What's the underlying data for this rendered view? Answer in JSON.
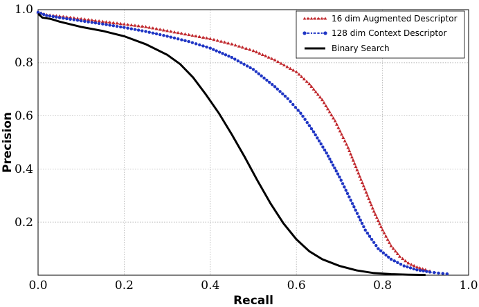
{
  "chart_data": {
    "type": "line",
    "title": "",
    "xlabel": "Recall",
    "ylabel": "Precision",
    "xlim": [
      0.0,
      1.0
    ],
    "ylim": [
      0.0,
      1.0
    ],
    "xticks": [
      "0.0",
      "0.2",
      "0.4",
      "0.6",
      "0.8",
      "1.0"
    ],
    "yticks": [
      "0.2",
      "0.4",
      "0.6",
      "0.8",
      "1.0"
    ],
    "grid": true,
    "legend_position": "top-right",
    "series": [
      {
        "name": "16 dim Augmented Descriptor",
        "color": "#c0282d",
        "style": "dotted-triangle",
        "x": [
          0.0,
          0.02,
          0.05,
          0.1,
          0.15,
          0.2,
          0.25,
          0.3,
          0.35,
          0.4,
          0.45,
          0.5,
          0.55,
          0.6,
          0.63,
          0.66,
          0.69,
          0.72,
          0.75,
          0.78,
          0.8,
          0.82,
          0.84,
          0.86,
          0.88,
          0.9,
          0.91
        ],
        "y": [
          0.99,
          0.98,
          0.975,
          0.965,
          0.955,
          0.945,
          0.935,
          0.92,
          0.905,
          0.89,
          0.87,
          0.845,
          0.81,
          0.765,
          0.72,
          0.66,
          0.58,
          0.48,
          0.36,
          0.24,
          0.17,
          0.11,
          0.07,
          0.045,
          0.03,
          0.02,
          0.015
        ]
      },
      {
        "name": "128 dim Context Descriptor",
        "color": "#1f35c4",
        "style": "dotted-circle",
        "x": [
          0.0,
          0.02,
          0.05,
          0.1,
          0.15,
          0.2,
          0.25,
          0.3,
          0.35,
          0.4,
          0.45,
          0.5,
          0.55,
          0.58,
          0.61,
          0.64,
          0.67,
          0.7,
          0.73,
          0.76,
          0.79,
          0.82,
          0.85,
          0.88,
          0.91,
          0.93,
          0.95
        ],
        "y": [
          0.99,
          0.978,
          0.97,
          0.958,
          0.946,
          0.933,
          0.918,
          0.9,
          0.88,
          0.855,
          0.82,
          0.775,
          0.71,
          0.665,
          0.61,
          0.54,
          0.46,
          0.37,
          0.27,
          0.17,
          0.1,
          0.06,
          0.035,
          0.02,
          0.012,
          0.008,
          0.005
        ]
      },
      {
        "name": "Binary Search",
        "color": "#000000",
        "style": "solid",
        "x": [
          0.0,
          0.01,
          0.03,
          0.05,
          0.1,
          0.15,
          0.2,
          0.25,
          0.3,
          0.33,
          0.36,
          0.39,
          0.42,
          0.45,
          0.48,
          0.51,
          0.54,
          0.57,
          0.6,
          0.63,
          0.66,
          0.7,
          0.74,
          0.78,
          0.82,
          0.86,
          0.9
        ],
        "y": [
          0.985,
          0.97,
          0.965,
          0.955,
          0.935,
          0.92,
          0.9,
          0.87,
          0.83,
          0.795,
          0.745,
          0.68,
          0.61,
          0.53,
          0.445,
          0.355,
          0.27,
          0.195,
          0.135,
          0.09,
          0.06,
          0.035,
          0.018,
          0.008,
          0.004,
          0.002,
          0.001
        ]
      }
    ]
  }
}
